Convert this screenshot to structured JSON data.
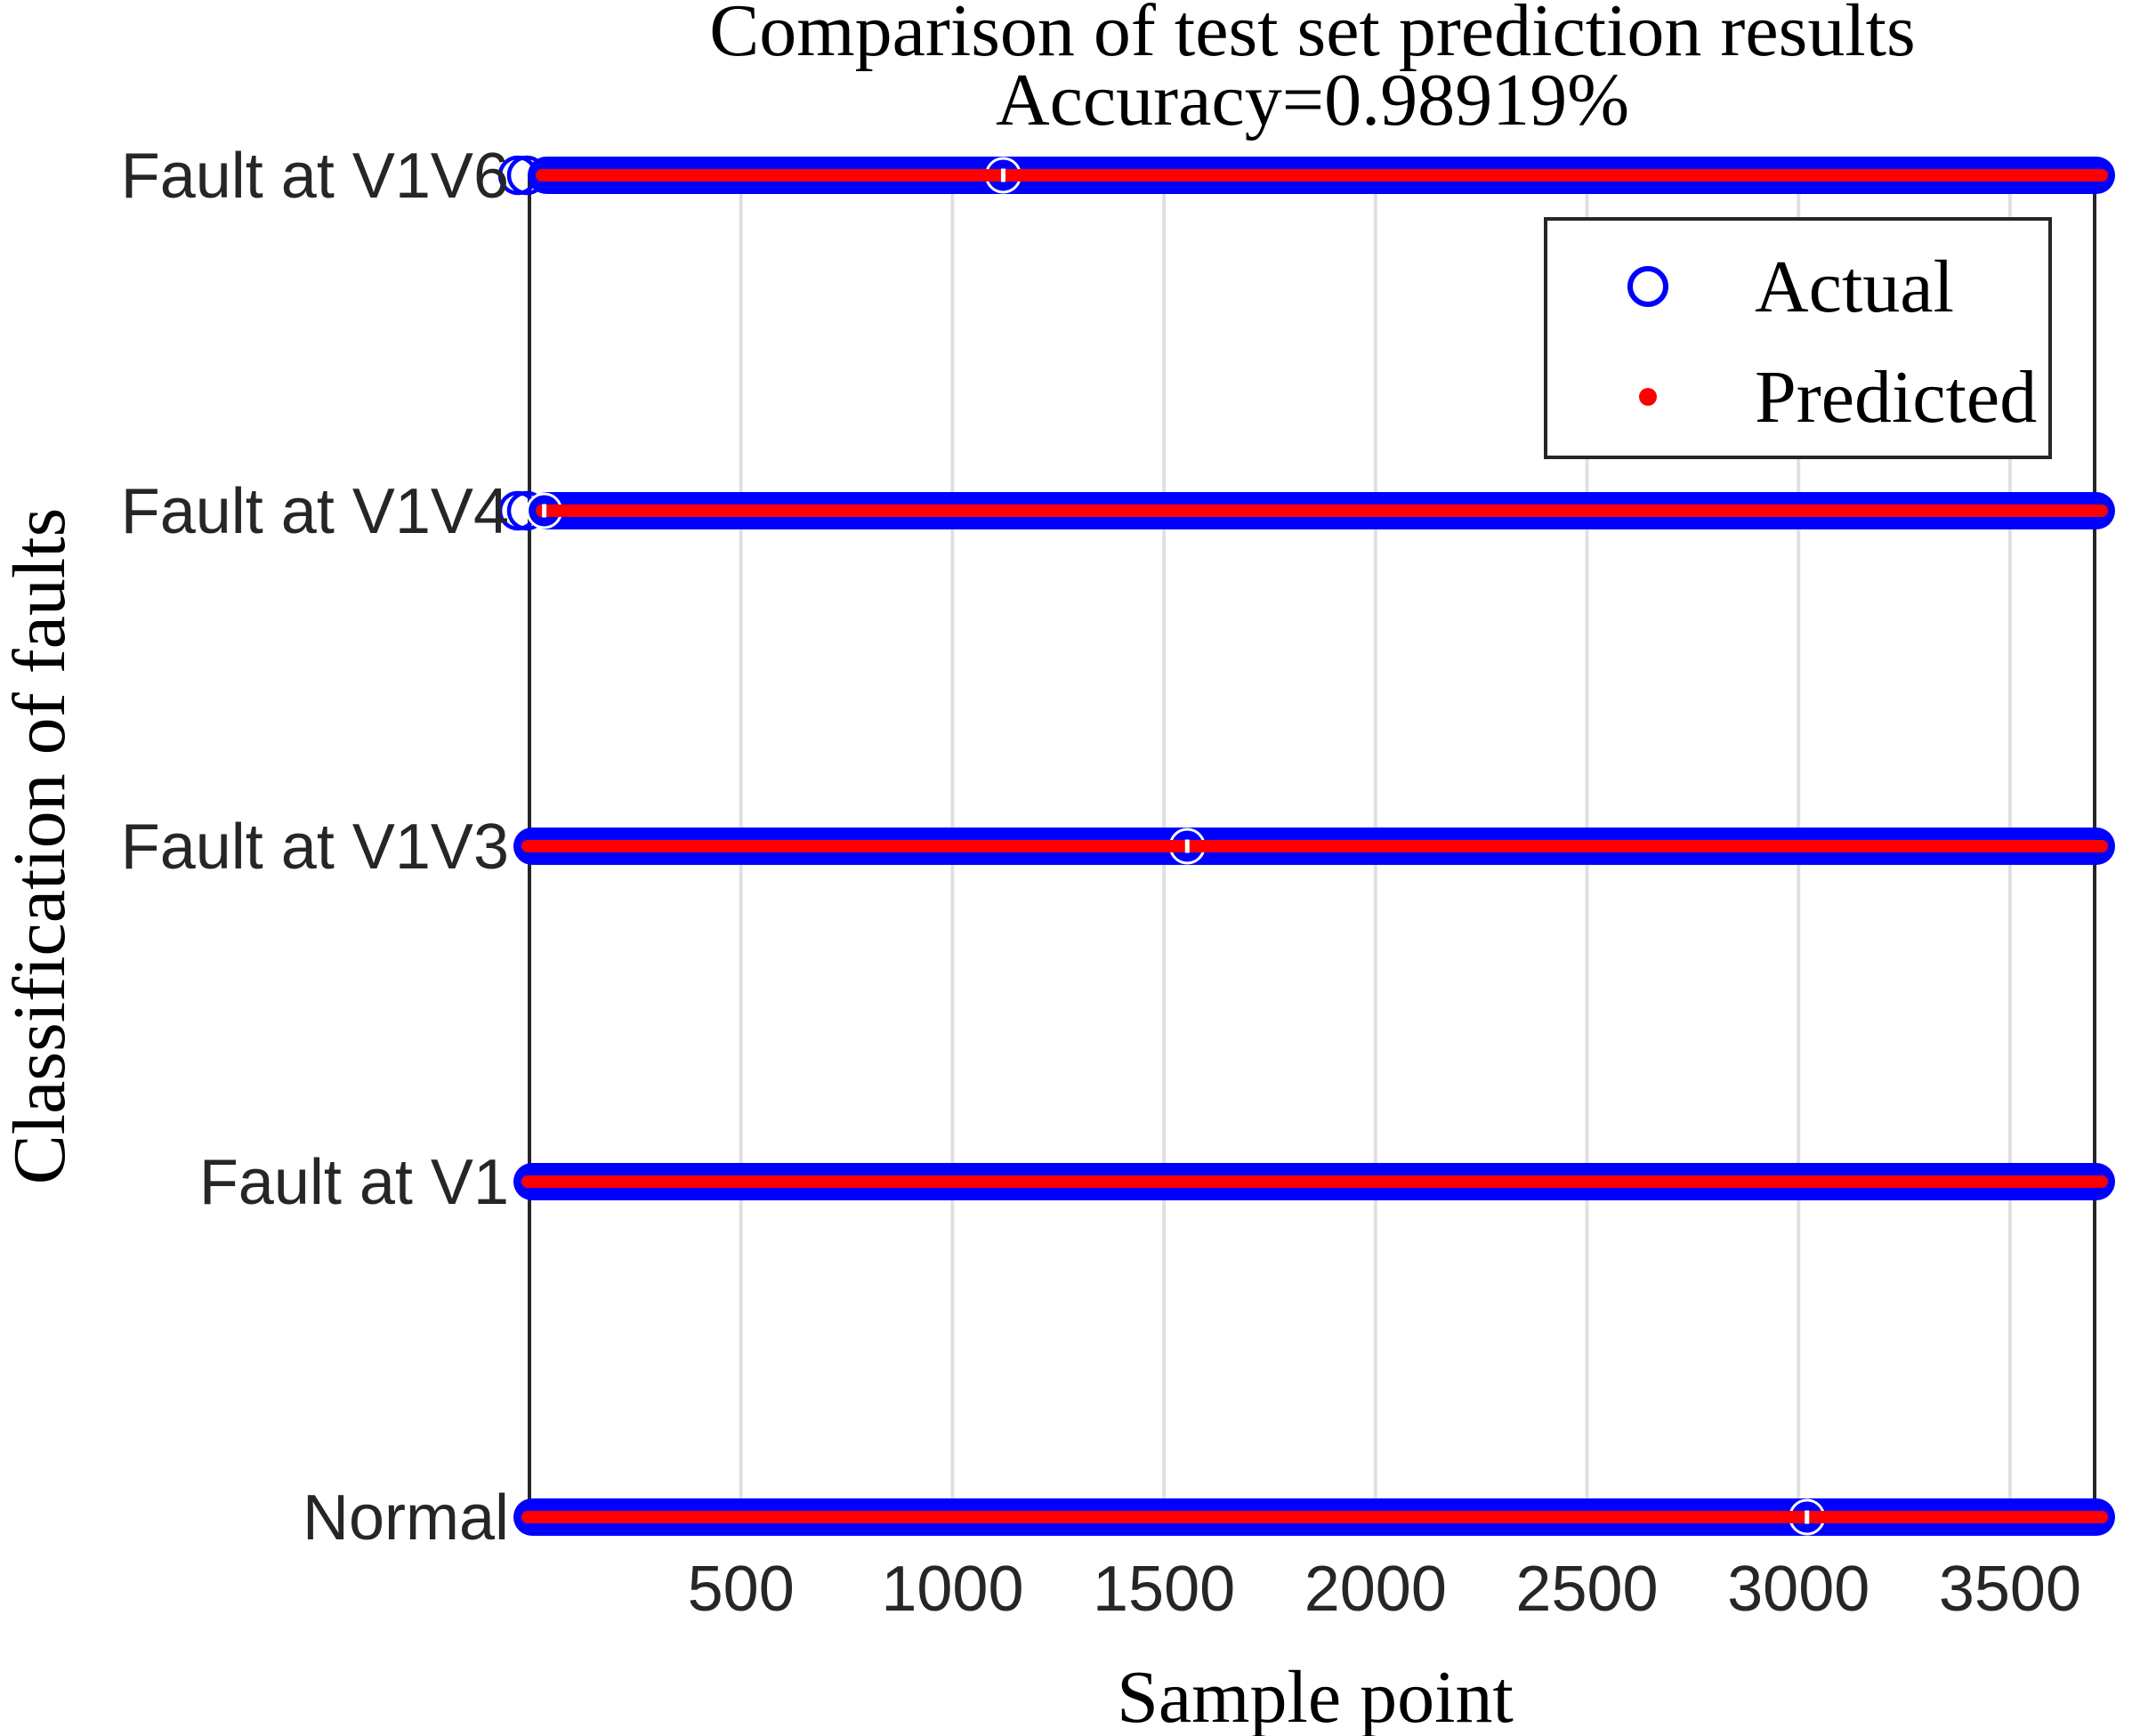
{
  "chart_data": {
    "type": "scatter",
    "title": "Comparison of test set prediction results",
    "subtitle": "Accuracy=0.98919%",
    "xlabel": "Sample point",
    "ylabel": "Classification of faults",
    "categories": [
      "Normal",
      "Fault at V1",
      "Fault at V1V3",
      "Fault at V1V4",
      "Fault at V1V6"
    ],
    "category_levels": [
      1,
      2,
      3,
      4,
      5
    ],
    "x_ticks": [
      500,
      1000,
      1500,
      2000,
      2500,
      3000,
      3500
    ],
    "xlim": [
      0,
      3700
    ],
    "ylim": [
      1,
      5
    ],
    "per_class_sample_extent": [
      1,
      3700
    ],
    "series": [
      {
        "name": "Actual",
        "marker": "open-circle",
        "color": "#0000ff"
      },
      {
        "name": "Predicted",
        "marker": "dot",
        "color": "#ff0000"
      }
    ],
    "legend": {
      "position": "upper-right",
      "items": [
        "Actual",
        "Predicted"
      ]
    },
    "grid": {
      "x_grid": true,
      "y_grid": false
    },
    "visible_discontinuities": [
      {
        "category": "Fault at V1V6",
        "sample": 1120
      },
      {
        "category": "Fault at V1V4",
        "sample": 35
      },
      {
        "category": "Fault at V1V3",
        "sample": 1555
      },
      {
        "category": "Normal",
        "sample": 3020
      }
    ]
  },
  "colors": {
    "actual_marker": "#0000ff",
    "predicted_marker": "#ff0000",
    "axes": "#262626",
    "grid": "#e0e0e0",
    "background": "#ffffff"
  }
}
